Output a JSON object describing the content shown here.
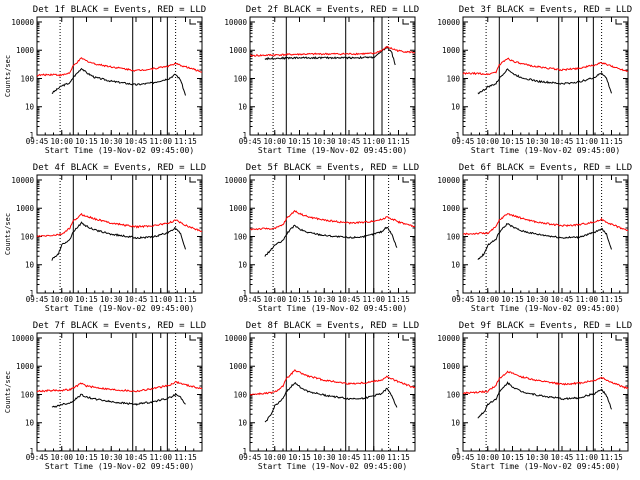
{
  "page": {
    "background": "#ffffff",
    "event_color": "#000000",
    "lld_color": "#ff0000"
  },
  "chart_data": [
    {
      "type": "line",
      "title": "Det 1f BLACK = Events, RED = LLD",
      "xlabel": "Start Time (19-Nov-02 09:45:00)",
      "ylabel": "Counts/sec",
      "yscale": "log",
      "ylim": [
        1,
        15000
      ],
      "y_ticks": [
        "1",
        "10",
        "100",
        "1000",
        "10000"
      ],
      "xlim": [
        "09:45",
        "11:25"
      ],
      "x_ticks": [
        "09:45",
        "10:00",
        "10:15",
        "10:30",
        "10:45",
        "11:00",
        "11:15"
      ],
      "solid_vlines": [
        "10:07",
        "10:43",
        "10:55",
        "11:04"
      ],
      "dotted_vlines": [
        "09:59",
        "11:09"
      ],
      "series": [
        {
          "key": "events",
          "color": "#000000",
          "x": [
            "09:54",
            "09:58",
            "10:00",
            "10:05",
            "10:07",
            "10:12",
            "10:15",
            "10:20",
            "10:30",
            "10:45",
            "10:55",
            "11:05",
            "11:09",
            "11:12",
            "11:15"
          ],
          "y": [
            30,
            45,
            55,
            70,
            110,
            230,
            160,
            110,
            80,
            60,
            70,
            100,
            140,
            90,
            25
          ]
        },
        {
          "key": "lld",
          "color": "#ff0000",
          "x": [
            "09:45",
            "09:55",
            "10:00",
            "10:05",
            "10:07",
            "10:12",
            "10:15",
            "10:20",
            "10:30",
            "10:45",
            "10:55",
            "11:05",
            "11:09",
            "11:15",
            "11:25"
          ],
          "y": [
            130,
            140,
            130,
            160,
            280,
            520,
            420,
            330,
            260,
            190,
            220,
            280,
            330,
            260,
            170
          ]
        }
      ]
    },
    {
      "type": "line",
      "title": "Det 2f BLACK = Events, RED = LLD",
      "xlabel": "Start Time (19-Nov-02 09:45:00)",
      "ylabel": "",
      "yscale": "log",
      "ylim": [
        1,
        15000
      ],
      "y_ticks": [
        "1",
        "10",
        "100",
        "1000",
        "10000"
      ],
      "xlim": [
        "09:45",
        "11:25"
      ],
      "x_ticks": [
        "09:45",
        "10:00",
        "10:15",
        "10:30",
        "10:45",
        "11:00",
        "11:15"
      ],
      "solid_vlines": [
        "10:07",
        "10:43",
        "11:00",
        "11:05"
      ],
      "dotted_vlines": [
        "09:59",
        "11:09"
      ],
      "series": [
        {
          "key": "events",
          "color": "#000000",
          "x": [
            "09:54",
            "10:00",
            "10:15",
            "10:30",
            "10:45",
            "11:00",
            "11:05",
            "11:08",
            "11:11",
            "11:13"
          ],
          "y": [
            500,
            520,
            540,
            540,
            540,
            560,
            900,
            1300,
            800,
            300
          ]
        },
        {
          "key": "lld",
          "color": "#ff0000",
          "x": [
            "09:45",
            "10:00",
            "10:15",
            "10:30",
            "10:45",
            "11:00",
            "11:05",
            "11:08",
            "11:15",
            "11:25"
          ],
          "y": [
            640,
            680,
            720,
            740,
            740,
            760,
            1000,
            1300,
            950,
            820
          ]
        }
      ]
    },
    {
      "type": "line",
      "title": "Det 3f BLACK = Events, RED = LLD",
      "xlabel": "Start Time (19-Nov-02 09:45:00)",
      "ylabel": "",
      "yscale": "log",
      "ylim": [
        1,
        15000
      ],
      "y_ticks": [
        "1",
        "10",
        "100",
        "1000",
        "10000"
      ],
      "xlim": [
        "09:45",
        "11:25"
      ],
      "x_ticks": [
        "09:45",
        "10:00",
        "10:15",
        "10:30",
        "10:45",
        "11:00",
        "11:15"
      ],
      "solid_vlines": [
        "10:07",
        "10:43",
        "10:55",
        "11:04"
      ],
      "dotted_vlines": [
        "09:59",
        "11:09"
      ],
      "series": [
        {
          "key": "events",
          "color": "#000000",
          "x": [
            "09:54",
            "09:58",
            "10:00",
            "10:05",
            "10:07",
            "10:12",
            "10:15",
            "10:20",
            "10:30",
            "10:45",
            "10:55",
            "11:05",
            "11:09",
            "11:12",
            "11:15"
          ],
          "y": [
            30,
            40,
            50,
            65,
            100,
            220,
            150,
            110,
            80,
            65,
            75,
            110,
            160,
            100,
            30
          ]
        },
        {
          "key": "lld",
          "color": "#ff0000",
          "x": [
            "09:45",
            "09:55",
            "10:00",
            "10:05",
            "10:07",
            "10:12",
            "10:15",
            "10:20",
            "10:30",
            "10:45",
            "10:55",
            "11:05",
            "11:09",
            "11:15",
            "11:25"
          ],
          "y": [
            150,
            150,
            140,
            170,
            300,
            520,
            420,
            330,
            260,
            200,
            230,
            300,
            360,
            270,
            180
          ]
        }
      ]
    },
    {
      "type": "line",
      "title": "Det 4f BLACK = Events, RED = LLD",
      "xlabel": "Start Time (19-Nov-02 09:45:00)",
      "ylabel": "Counts/sec",
      "yscale": "log",
      "ylim": [
        1,
        15000
      ],
      "y_ticks": [
        "1",
        "10",
        "100",
        "1000",
        "10000"
      ],
      "xlim": [
        "09:45",
        "11:25"
      ],
      "x_ticks": [
        "09:45",
        "10:00",
        "10:15",
        "10:30",
        "10:45",
        "11:00",
        "11:15"
      ],
      "solid_vlines": [
        "10:07",
        "10:43",
        "10:55",
        "11:04"
      ],
      "dotted_vlines": [
        "09:59",
        "11:09"
      ],
      "series": [
        {
          "key": "events",
          "color": "#000000",
          "x": [
            "09:54",
            "09:58",
            "10:00",
            "10:05",
            "10:07",
            "10:12",
            "10:15",
            "10:20",
            "10:30",
            "10:45",
            "10:55",
            "11:05",
            "11:09",
            "11:12",
            "11:15"
          ],
          "y": [
            15,
            25,
            50,
            80,
            150,
            300,
            230,
            170,
            120,
            90,
            95,
            140,
            200,
            130,
            35
          ]
        },
        {
          "key": "lld",
          "color": "#ff0000",
          "x": [
            "09:45",
            "09:55",
            "10:00",
            "10:05",
            "10:07",
            "10:12",
            "10:15",
            "10:20",
            "10:30",
            "10:45",
            "10:55",
            "11:05",
            "11:09",
            "11:15",
            "11:25"
          ],
          "y": [
            100,
            110,
            120,
            200,
            350,
            600,
            520,
            420,
            300,
            220,
            240,
            300,
            380,
            250,
            150
          ]
        }
      ]
    },
    {
      "type": "line",
      "title": "Det 5f BLACK = Events, RED = LLD",
      "xlabel": "Start Time (19-Nov-02 09:45:00)",
      "ylabel": "",
      "yscale": "log",
      "ylim": [
        1,
        15000
      ],
      "y_ticks": [
        "1",
        "10",
        "100",
        "1000",
        "10000"
      ],
      "xlim": [
        "09:45",
        "11:25"
      ],
      "x_ticks": [
        "09:45",
        "10:00",
        "10:15",
        "10:30",
        "10:45",
        "11:00",
        "11:15"
      ],
      "solid_vlines": [
        "10:07",
        "10:43",
        "10:55",
        "11:00"
      ],
      "dotted_vlines": [
        "09:59",
        "11:09"
      ],
      "series": [
        {
          "key": "events",
          "color": "#000000",
          "x": [
            "09:54",
            "09:58",
            "10:00",
            "10:05",
            "10:07",
            "10:12",
            "10:15",
            "10:20",
            "10:30",
            "10:45",
            "10:55",
            "11:05",
            "11:08",
            "11:11",
            "11:14"
          ],
          "y": [
            20,
            35,
            50,
            70,
            120,
            250,
            180,
            140,
            110,
            90,
            100,
            150,
            220,
            120,
            40
          ]
        },
        {
          "key": "lld",
          "color": "#ff0000",
          "x": [
            "09:45",
            "09:55",
            "10:00",
            "10:05",
            "10:07",
            "10:12",
            "10:15",
            "10:20",
            "10:30",
            "10:45",
            "10:55",
            "11:05",
            "11:08",
            "11:15",
            "11:25"
          ],
          "y": [
            180,
            190,
            190,
            260,
            420,
            800,
            650,
            500,
            380,
            300,
            320,
            400,
            500,
            330,
            220
          ]
        }
      ]
    },
    {
      "type": "line",
      "title": "Det 6f BLACK = Events, RED = LLD",
      "xlabel": "Start Time (19-Nov-02 09:45:00)",
      "ylabel": "",
      "yscale": "log",
      "ylim": [
        1,
        15000
      ],
      "y_ticks": [
        "1",
        "10",
        "100",
        "1000",
        "10000"
      ],
      "xlim": [
        "09:45",
        "11:25"
      ],
      "x_ticks": [
        "09:45",
        "10:00",
        "10:15",
        "10:30",
        "10:45",
        "11:00",
        "11:15"
      ],
      "solid_vlines": [
        "10:07",
        "10:43",
        "10:55",
        "11:04"
      ],
      "dotted_vlines": [
        "09:59",
        "11:09"
      ],
      "series": [
        {
          "key": "events",
          "color": "#000000",
          "x": [
            "09:54",
            "09:58",
            "10:00",
            "10:05",
            "10:07",
            "10:12",
            "10:15",
            "10:20",
            "10:30",
            "10:45",
            "10:55",
            "11:05",
            "11:09",
            "11:12",
            "11:15"
          ],
          "y": [
            15,
            25,
            50,
            80,
            140,
            290,
            220,
            160,
            120,
            90,
            95,
            140,
            190,
            120,
            35
          ]
        },
        {
          "key": "lld",
          "color": "#ff0000",
          "x": [
            "09:45",
            "09:55",
            "10:00",
            "10:05",
            "10:07",
            "10:12",
            "10:15",
            "10:20",
            "10:30",
            "10:45",
            "10:55",
            "11:05",
            "11:09",
            "11:15",
            "11:25"
          ],
          "y": [
            120,
            130,
            130,
            220,
            380,
            650,
            560,
            450,
            320,
            240,
            260,
            330,
            400,
            270,
            160
          ]
        }
      ]
    },
    {
      "type": "line",
      "title": "Det 7f BLACK = Events, RED = LLD",
      "xlabel": "Start Time (19-Nov-02 09:45:00)",
      "ylabel": "Counts/sec",
      "yscale": "log",
      "ylim": [
        1,
        15000
      ],
      "y_ticks": [
        "1",
        "10",
        "100",
        "1000",
        "10000"
      ],
      "xlim": [
        "09:45",
        "11:25"
      ],
      "x_ticks": [
        "09:45",
        "10:00",
        "10:15",
        "10:30",
        "10:45",
        "11:00",
        "11:15"
      ],
      "solid_vlines": [
        "10:07",
        "10:43",
        "10:55",
        "11:04"
      ],
      "dotted_vlines": [
        "09:59",
        "11:09"
      ],
      "series": [
        {
          "key": "events",
          "color": "#000000",
          "x": [
            "09:54",
            "09:58",
            "10:00",
            "10:05",
            "10:07",
            "10:12",
            "10:15",
            "10:20",
            "10:30",
            "10:45",
            "10:55",
            "11:05",
            "11:09",
            "11:12",
            "11:15"
          ],
          "y": [
            35,
            40,
            45,
            50,
            60,
            100,
            80,
            70,
            55,
            45,
            55,
            75,
            100,
            80,
            45
          ]
        },
        {
          "key": "lld",
          "color": "#ff0000",
          "x": [
            "09:45",
            "09:55",
            "10:00",
            "10:05",
            "10:07",
            "10:12",
            "10:15",
            "10:20",
            "10:30",
            "10:45",
            "10:55",
            "11:05",
            "11:09",
            "11:15",
            "11:25"
          ],
          "y": [
            130,
            140,
            140,
            150,
            170,
            250,
            200,
            180,
            150,
            130,
            160,
            210,
            280,
            220,
            160
          ]
        }
      ]
    },
    {
      "type": "line",
      "title": "Det 8f BLACK = Events, RED = LLD",
      "xlabel": "Start Time (19-Nov-02 09:45:00)",
      "ylabel": "",
      "yscale": "log",
      "ylim": [
        1,
        15000
      ],
      "y_ticks": [
        "1",
        "10",
        "100",
        "1000",
        "10000"
      ],
      "xlim": [
        "09:45",
        "11:25"
      ],
      "x_ticks": [
        "09:45",
        "10:00",
        "10:15",
        "10:30",
        "10:45",
        "11:00",
        "11:15"
      ],
      "solid_vlines": [
        "10:07",
        "10:43",
        "10:55",
        "11:00"
      ],
      "dotted_vlines": [
        "09:59",
        "11:09"
      ],
      "series": [
        {
          "key": "events",
          "color": "#000000",
          "x": [
            "09:54",
            "09:58",
            "10:00",
            "10:05",
            "10:07",
            "10:12",
            "10:15",
            "10:20",
            "10:30",
            "10:45",
            "10:55",
            "11:05",
            "11:08",
            "11:11",
            "11:14"
          ],
          "y": [
            10,
            20,
            40,
            70,
            120,
            260,
            190,
            130,
            95,
            70,
            75,
            110,
            160,
            90,
            35
          ]
        },
        {
          "key": "lld",
          "color": "#ff0000",
          "x": [
            "09:45",
            "09:55",
            "10:00",
            "10:05",
            "10:07",
            "10:12",
            "10:15",
            "10:20",
            "10:30",
            "10:45",
            "10:55",
            "11:05",
            "11:08",
            "11:15",
            "11:25"
          ],
          "y": [
            100,
            110,
            120,
            200,
            350,
            700,
            600,
            450,
            320,
            240,
            260,
            330,
            420,
            280,
            170
          ]
        }
      ]
    },
    {
      "type": "line",
      "title": "Det 9f BLACK = Events, RED = LLD",
      "xlabel": "Start Time (19-Nov-02 09:45:00)",
      "ylabel": "",
      "yscale": "log",
      "ylim": [
        1,
        15000
      ],
      "y_ticks": [
        "1",
        "10",
        "100",
        "1000",
        "10000"
      ],
      "xlim": [
        "09:45",
        "11:25"
      ],
      "x_ticks": [
        "09:45",
        "10:00",
        "10:15",
        "10:30",
        "10:45",
        "11:00",
        "11:15"
      ],
      "solid_vlines": [
        "10:07",
        "10:43",
        "10:55",
        "11:04"
      ],
      "dotted_vlines": [
        "09:59",
        "11:09"
      ],
      "series": [
        {
          "key": "events",
          "color": "#000000",
          "x": [
            "09:54",
            "09:58",
            "10:00",
            "10:05",
            "10:07",
            "10:12",
            "10:15",
            "10:20",
            "10:30",
            "10:45",
            "10:55",
            "11:05",
            "11:09",
            "11:12",
            "11:15"
          ],
          "y": [
            15,
            25,
            45,
            70,
            120,
            260,
            190,
            130,
            95,
            70,
            75,
            110,
            150,
            90,
            30
          ]
        },
        {
          "key": "lld",
          "color": "#ff0000",
          "x": [
            "09:45",
            "09:55",
            "10:00",
            "10:05",
            "10:07",
            "10:12",
            "10:15",
            "10:20",
            "10:30",
            "10:45",
            "10:55",
            "11:05",
            "11:09",
            "11:15",
            "11:25"
          ],
          "y": [
            110,
            120,
            130,
            210,
            360,
            650,
            550,
            430,
            310,
            230,
            250,
            320,
            400,
            270,
            160
          ]
        }
      ]
    }
  ]
}
